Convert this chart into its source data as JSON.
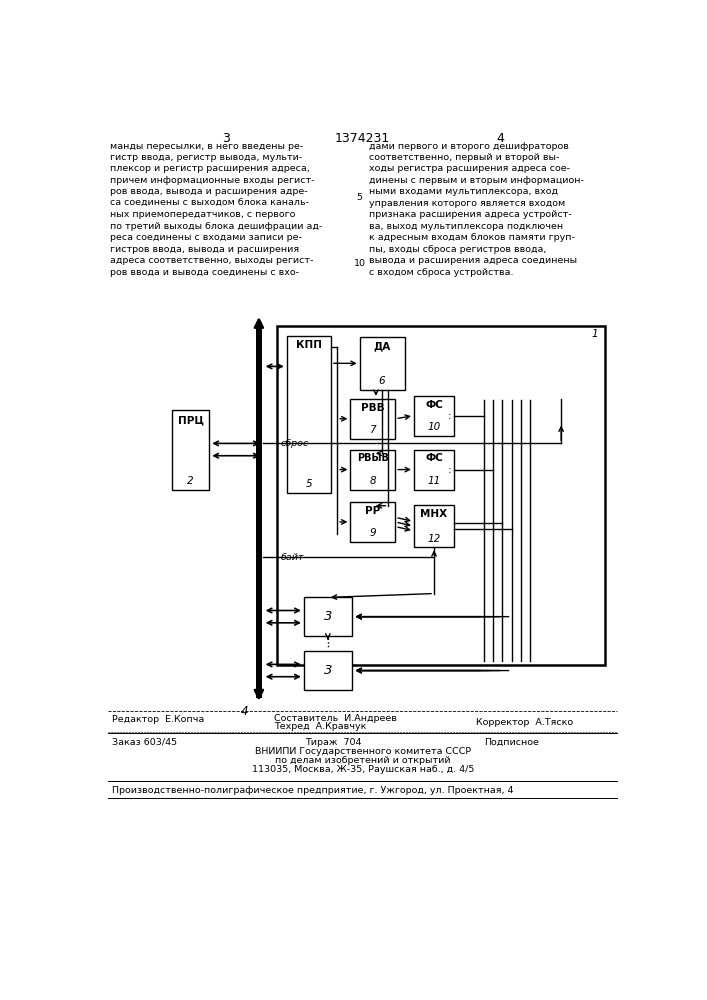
{
  "bg_color": "#ffffff",
  "text_color": "#000000",
  "page_num_left": "3",
  "page_num_center": "1374231",
  "page_num_right": "4",
  "body_text_left": "манды пересылки, в него введены ре-\nгистр ввода, регистр вывода, мульти-\nплексор и регистр расширения адреса,\nпричем информационные входы регист-\nров ввода, вывода и расширения адре-\nса соединены с выходом блока каналь-\nных приемопередатчиков, с первого\nпо третий выходы блока дешифрации ад-\nреса соединены с входами записи ре-\nгистров ввода, вывода и расширения\nадреса соответственно, выходы регист-\nров ввода и вывода соединены с вхо-",
  "body_text_right": "дами первого и второго дешифраторов\nсоответственно, первый и второй вы-\nходы регистра расширения адреса сое-\nдинены с первым и вторым информацион-\nными входами мультиплексора, вход\nуправления которого является входом\nпризнака расширения адреса устройст-\nва, выход мультиплексора подключен\nк адресным входам блоков памяти груп-\nпы, входы сброса регистров ввода,\nвывода и расширения адреса соединены\nс входом сброса устройства.",
  "footer_editor": "Редактор  Е.Копча",
  "footer_compiler": "Составитель  И.Андреев",
  "footer_techred": "Техред  А.Кравчук",
  "footer_corrector": "Корректор  А.Тяско",
  "footer_order": "Заказ 603/45",
  "footer_tirazh": "Тираж  704",
  "footer_podpisnoe": "Подписное",
  "footer_vniip1": "ВНИИПИ Государственного комитета СССР",
  "footer_vniip2": "по делам изобретений и открытий",
  "footer_vniip3": "113035, Москва, Ж-35, Раушская наб., д. 4/5",
  "footer_prod": "Производственно-полиграфическое предприятие, г. Ужгород, ул. Проектная, 4",
  "line_number_5": "5",
  "line_number_10": "10"
}
